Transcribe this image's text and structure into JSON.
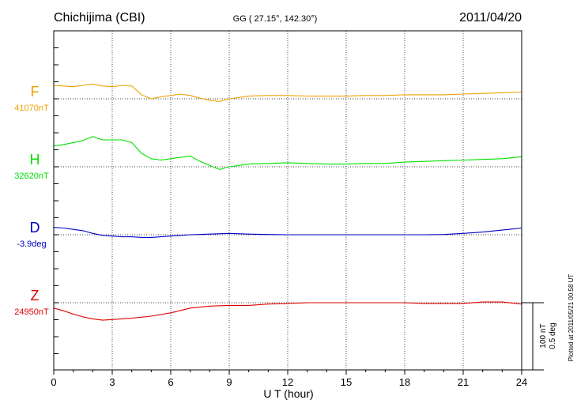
{
  "chart_data": {
    "type": "line",
    "title": "Chichijima (CBI)",
    "subtitle": "GG ( 27.15°, 142.30°)",
    "date": "2011/04/20",
    "xlabel": "U T (hour)",
    "xlim": [
      0,
      24
    ],
    "x_ticks": [
      0,
      3,
      6,
      9,
      12,
      15,
      18,
      21,
      24
    ],
    "x_tick_labels": [
      "0",
      "3",
      "6",
      "9",
      "12",
      "15",
      "18",
      "21",
      "24"
    ],
    "grid": true,
    "scale_bar": {
      "nt_label": "100 nT",
      "deg_label": "0.5 deg",
      "nt_per_bar": 100,
      "deg_per_bar": 0.5
    },
    "plotted_at": "Plotted at 2011/05/21 00:58 UT",
    "series": [
      {
        "name": "F",
        "baseline_label": "41070nT",
        "baseline": 41070,
        "unit": "nT",
        "color": "#f0a000",
        "x": [
          0,
          0.5,
          1.0,
          1.5,
          2.0,
          2.5,
          3.0,
          3.5,
          4.0,
          4.5,
          5.0,
          5.5,
          6.0,
          6.5,
          7.0,
          7.5,
          8.0,
          8.5,
          9.0,
          10,
          11,
          12,
          13,
          14,
          15,
          16,
          17,
          18,
          19,
          20,
          21,
          22,
          23,
          24
        ],
        "values": [
          41090,
          41089,
          41088,
          41090,
          41092,
          41089,
          41088,
          41090,
          41089,
          41076,
          41070,
          41073,
          41075,
          41077,
          41075,
          41071,
          41068,
          41066,
          41070,
          41074,
          41075,
          41075,
          41074,
          41074,
          41074,
          41075,
          41075,
          41076,
          41076,
          41076,
          41077,
          41078,
          41079,
          41080
        ]
      },
      {
        "name": "H",
        "baseline_label": "32620nT",
        "baseline": 32620,
        "unit": "nT",
        "color": "#00e000",
        "x": [
          0,
          0.5,
          1.0,
          1.5,
          2.0,
          2.5,
          3.0,
          3.5,
          4.0,
          4.5,
          5.0,
          5.5,
          6.0,
          6.5,
          7.0,
          7.5,
          8.0,
          8.5,
          9.0,
          10,
          11,
          12,
          13,
          14,
          15,
          16,
          17,
          18,
          19,
          20,
          21,
          22,
          23,
          24
        ],
        "values": [
          32651,
          32653,
          32656,
          32659,
          32665,
          32660,
          32660,
          32660,
          32656,
          32640,
          32632,
          32630,
          32632,
          32634,
          32636,
          32628,
          32622,
          32616,
          32620,
          32624,
          32625,
          32626,
          32625,
          32624,
          32624,
          32625,
          32625,
          32627,
          32628,
          32629,
          32630,
          32631,
          32632,
          32635
        ]
      },
      {
        "name": "D",
        "baseline_label": "-3.9deg",
        "baseline": -3.9,
        "unit": "deg",
        "color": "#0000c8",
        "x": [
          0,
          0.5,
          1.0,
          1.5,
          2.0,
          2.5,
          3.0,
          3.5,
          4.0,
          4.5,
          5.0,
          5.5,
          6.0,
          6.5,
          7.0,
          8.0,
          9.0,
          10,
          11,
          12,
          13,
          14,
          15,
          16,
          17,
          18,
          19,
          20,
          21,
          22,
          23,
          24
        ],
        "values": [
          -3.845,
          -3.85,
          -3.86,
          -3.87,
          -3.89,
          -3.905,
          -3.91,
          -3.915,
          -3.915,
          -3.92,
          -3.92,
          -3.915,
          -3.91,
          -3.905,
          -3.9,
          -3.895,
          -3.89,
          -3.895,
          -3.898,
          -3.9,
          -3.9,
          -3.9,
          -3.9,
          -3.9,
          -3.9,
          -3.9,
          -3.9,
          -3.898,
          -3.89,
          -3.88,
          -3.865,
          -3.85
        ]
      },
      {
        "name": "Z",
        "baseline_label": "24950nT",
        "baseline": 24950,
        "unit": "nT",
        "color": "#e00000",
        "x": [
          0,
          0.5,
          1.0,
          1.5,
          2.0,
          2.5,
          3.0,
          4.0,
          5.0,
          6.0,
          7.0,
          8.0,
          9.0,
          10,
          11,
          12,
          13,
          14,
          15,
          16,
          17,
          18,
          19,
          20,
          21,
          22,
          23,
          24
        ],
        "values": [
          24942,
          24938,
          24933,
          24929,
          24926,
          24924,
          24925,
          24927,
          24930,
          24935,
          24942,
          24945,
          24946,
          24946,
          24948,
          24949,
          24950,
          24950,
          24950,
          24950,
          24950,
          24950,
          24949,
          24949,
          24949,
          24951,
          24951,
          24948
        ]
      }
    ]
  }
}
